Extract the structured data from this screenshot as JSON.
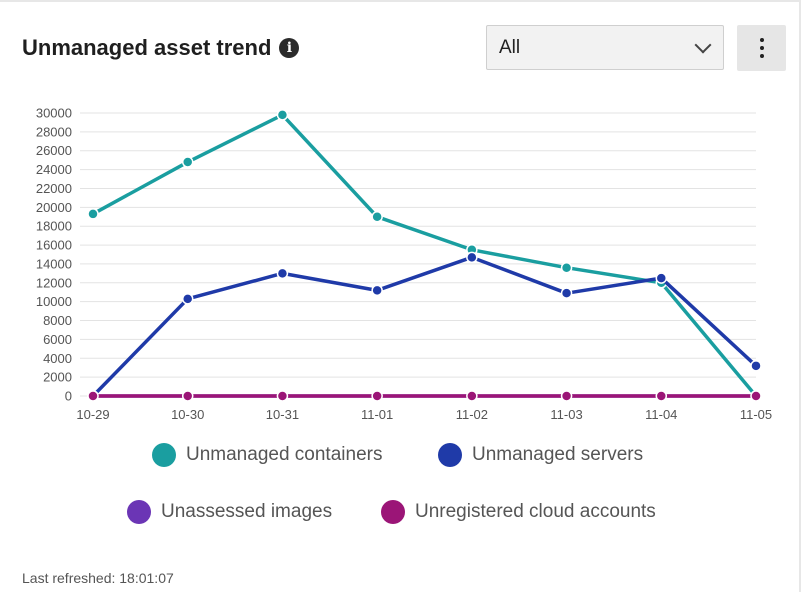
{
  "header": {
    "title": "Unmanaged asset trend",
    "info_icon": "info-circle-icon",
    "filter_value": "All",
    "menu_icon": "kebab-menu-icon"
  },
  "footer": {
    "last_refreshed": "Last refreshed: 18:01:07"
  },
  "colors": {
    "containers": "#1a9ea0",
    "servers": "#1f3aa8",
    "images": "#6b35b5",
    "cloud_accounts": "#9b1577",
    "grid": "#e3e3e3"
  },
  "chart_data": {
    "type": "line",
    "x": [
      "10-29",
      "10-30",
      "10-31",
      "11-01",
      "11-02",
      "11-03",
      "11-04",
      "11-05"
    ],
    "ylim": [
      0,
      30000
    ],
    "yticks": [
      0,
      2000,
      4000,
      6000,
      8000,
      10000,
      12000,
      14000,
      16000,
      18000,
      20000,
      22000,
      24000,
      26000,
      28000,
      30000
    ],
    "grid": true,
    "legend_position": "bottom",
    "series": [
      {
        "name": "Unmanaged containers",
        "color": "#1a9ea0",
        "values": [
          19300,
          24800,
          29800,
          19000,
          15500,
          13600,
          12000,
          0
        ]
      },
      {
        "name": "Unmanaged servers",
        "color": "#1f3aa8",
        "values": [
          0,
          10300,
          13000,
          11200,
          14700,
          10900,
          12500,
          3200
        ]
      },
      {
        "name": "Unassessed images",
        "color": "#6b35b5",
        "values": [
          0,
          0,
          0,
          0,
          0,
          0,
          0,
          0
        ]
      },
      {
        "name": "Unregistered cloud accounts",
        "color": "#9b1577",
        "values": [
          0,
          0,
          0,
          0,
          0,
          0,
          0,
          0
        ]
      }
    ]
  }
}
